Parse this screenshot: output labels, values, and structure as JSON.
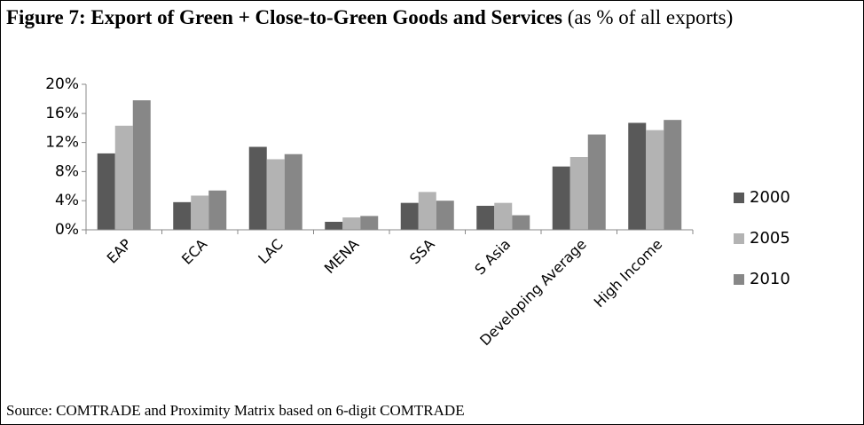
{
  "chart_data": {
    "type": "bar",
    "title": "Figure 7: Export of Green + Close-to-Green Goods and Services",
    "subtitle": "(as % of all exports)",
    "source": "Source: COMTRADE and Proximity Matrix based on 6-digit COMTRADE",
    "categories": [
      "EAP",
      "ECA",
      "LAC",
      "MENA",
      "SSA",
      "S Asia",
      "Developing Average",
      "High Income"
    ],
    "series": [
      {
        "name": "2000",
        "color": "#595959",
        "values": [
          10.5,
          3.8,
          11.4,
          1.1,
          3.7,
          3.3,
          8.7,
          14.7
        ]
      },
      {
        "name": "2005",
        "color": "#b3b3b3",
        "values": [
          14.3,
          4.7,
          9.7,
          1.7,
          5.2,
          3.7,
          10.0,
          13.7
        ]
      },
      {
        "name": "2010",
        "color": "#878787",
        "values": [
          17.8,
          5.4,
          10.4,
          1.9,
          4.0,
          2.0,
          13.1,
          15.1
        ]
      }
    ],
    "ylim": [
      0,
      20
    ],
    "yticks": [
      {
        "value": 0,
        "label": "0%"
      },
      {
        "value": 4,
        "label": "4%"
      },
      {
        "value": 8,
        "label": "8%"
      },
      {
        "value": 12,
        "label": "12%"
      },
      {
        "value": 16,
        "label": "16%"
      },
      {
        "value": 20,
        "label": "20%"
      }
    ],
    "legend": "right"
  }
}
